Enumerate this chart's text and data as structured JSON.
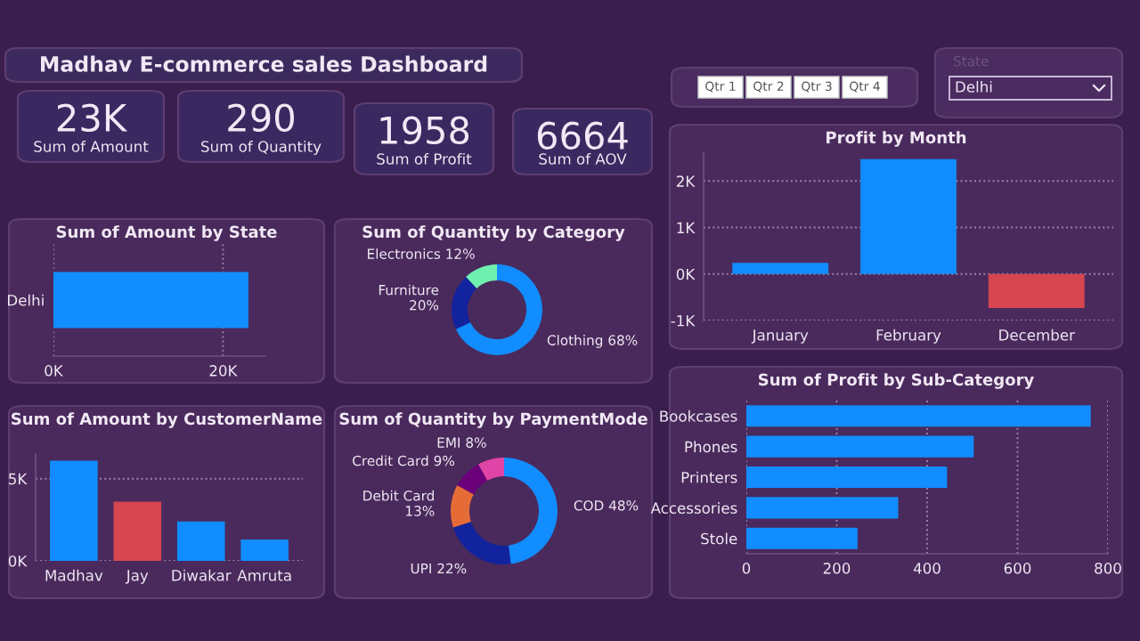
{
  "chart_data": [
    {
      "type": "other",
      "title": "Madhav E-commerce sales Dashboard",
      "annotations": [
        "23K",
        "Sum of Amount",
        "290",
        "Sum of Quantity",
        "1958",
        "Sum of Profit",
        "6664",
        "Sum of AOV",
        "Qtr 1",
        "Qtr 2",
        "Qtr 3",
        "Qtr 4",
        "State",
        "Delhi"
      ]
    },
    {
      "type": "bar",
      "title": "Sum of Amount by State",
      "orientation": "horizontal",
      "categories": [
        "Delhi"
      ],
      "values": [
        23000
      ],
      "color": "#118dff",
      "xlim": [
        0,
        25000
      ],
      "xticks": [
        {
          "value": 0,
          "label": "0K"
        },
        {
          "value": 20000,
          "label": "20K"
        }
      ],
      "grid": "x"
    },
    {
      "type": "donut",
      "title": "Sum of Quantity by Category",
      "categories": [
        "Clothing",
        "Furniture",
        "Electronics"
      ],
      "values": [
        68,
        20,
        12
      ],
      "colors": [
        "#118dff",
        "#12239e",
        "#6ff0b0"
      ],
      "value_labels": [
        "68%",
        "20%",
        "12%"
      ]
    },
    {
      "type": "bar",
      "title": "Sum of Amount by CustomerName",
      "categories": [
        "Madhav",
        "Jay",
        "Diwakar",
        "Amruta"
      ],
      "values": [
        6100,
        3600,
        2400,
        1300
      ],
      "colors": [
        "#118dff",
        "#d64550",
        "#118dff",
        "#118dff"
      ],
      "ylim": [
        0,
        6500
      ],
      "yticks": [
        {
          "value": 0,
          "label": "0K"
        },
        {
          "value": 5000,
          "label": "5K"
        }
      ],
      "grid": "y"
    },
    {
      "type": "donut",
      "title": "Sum of Quantity by PaymentMode",
      "categories": [
        "COD",
        "UPI",
        "Debit Card",
        "Credit Card",
        "EMI"
      ],
      "values": [
        48,
        22,
        13,
        9,
        8
      ],
      "colors": [
        "#118dff",
        "#12239e",
        "#e66c37",
        "#6b007b",
        "#e044a7"
      ],
      "value_labels": [
        "48%",
        "22%",
        "13%",
        "9%",
        "8%"
      ]
    },
    {
      "type": "bar",
      "title": "Profit by Month",
      "categories": [
        "January",
        "February",
        "December"
      ],
      "values": [
        240,
        2470,
        -730
      ],
      "colors": [
        "#118dff",
        "#118dff",
        "#d64550"
      ],
      "ylim": [
        -1000,
        2600
      ],
      "yticks": [
        {
          "value": -1000,
          "label": "-1K"
        },
        {
          "value": 0,
          "label": "0K"
        },
        {
          "value": 1000,
          "label": "1K"
        },
        {
          "value": 2000,
          "label": "2K"
        }
      ],
      "grid": "y"
    },
    {
      "type": "bar",
      "title": "Sum of Profit by Sub-Category",
      "orientation": "horizontal",
      "categories": [
        "Bookcases",
        "Phones",
        "Printers",
        "Accessories",
        "Stole"
      ],
      "values": [
        762,
        503,
        444,
        336,
        246
      ],
      "color": "#118dff",
      "xlim": [
        0,
        800
      ],
      "xticks": [
        0,
        200,
        400,
        600,
        800
      ],
      "grid": "x"
    }
  ]
}
